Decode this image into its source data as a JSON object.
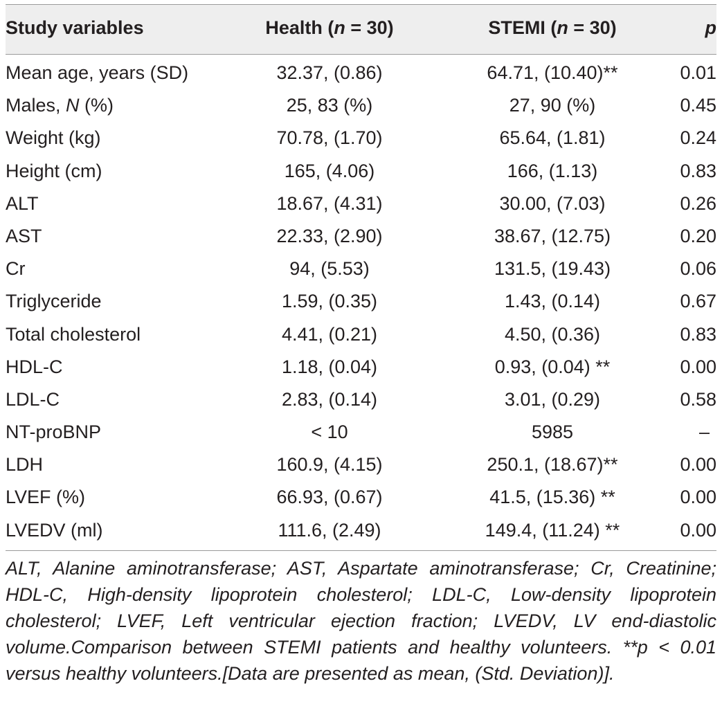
{
  "table": {
    "header": {
      "col1": "Study variables",
      "col2_prefix": "Health (",
      "col2_n": "n",
      "col2_suffix": " = 30)",
      "col3_prefix": "STEMI (",
      "col3_n": "n",
      "col3_suffix": " = 30)",
      "col4": "p"
    },
    "rows": [
      {
        "label": "Mean age, years (SD)",
        "health": "32.37, (0.86)",
        "stemi": "64.71, (10.40)**",
        "p": "0.01"
      },
      {
        "label_prefix": "Males, ",
        "label_italic": "N",
        "label_suffix": " (%)",
        "health": "25, 83 (%)",
        "stemi": "27, 90 (%)",
        "p": "0.45"
      },
      {
        "label": "Weight (kg)",
        "health": "70.78, (1.70)",
        "stemi": "65.64, (1.81)",
        "p": "0.24"
      },
      {
        "label": "Height (cm)",
        "health": "165, (4.06)",
        "stemi": "166, (1.13)",
        "p": "0.83"
      },
      {
        "label": "ALT",
        "health": "18.67, (4.31)",
        "stemi": "30.00, (7.03)",
        "p": "0.26"
      },
      {
        "label": "AST",
        "health": "22.33, (2.90)",
        "stemi": "38.67, (12.75)",
        "p": "0.20"
      },
      {
        "label": "Cr",
        "health": "94, (5.53)",
        "stemi": "131.5, (19.43)",
        "p": "0.06"
      },
      {
        "label": "Triglyceride",
        "health": "1.59, (0.35)",
        "stemi": "1.43, (0.14)",
        "p": "0.67"
      },
      {
        "label": "Total cholesterol",
        "health": "4.41, (0.21)",
        "stemi": "4.50, (0.36)",
        "p": "0.83"
      },
      {
        "label": "HDL-C",
        "health": "1.18, (0.04)",
        "stemi": "0.93, (0.04) **",
        "p": "0.00"
      },
      {
        "label": "LDL-C",
        "health": "2.83, (0.14)",
        "stemi": "3.01, (0.29)",
        "p": "0.58"
      },
      {
        "label": "NT-proBNP",
        "health": "< 10",
        "stemi": "5985",
        "p": "–"
      },
      {
        "label": "LDH",
        "health": "160.9, (4.15)",
        "stemi": "250.1, (18.67)**",
        "p": "0.00"
      },
      {
        "label": "LVEF (%)",
        "health": "66.93, (0.67)",
        "stemi": "41.5, (15.36) **",
        "p": "0.00"
      },
      {
        "label": "LVEDV (ml)",
        "health": "111.6, (2.49)",
        "stemi": "149.4, (11.24) **",
        "p": "0.00"
      }
    ],
    "footnote": "ALT, Alanine aminotransferase; AST, Aspartate aminotransferase; Cr, Creatinine; HDL-C, High-density lipoprotein cholesterol; LDL-C, Low-density lipoprotein cholesterol; LVEF, Left ventricular ejection fraction; LVEDV, LV end-diastolic volume.Comparison between STEMI patients and healthy volunteers. **p < 0.01 versus healthy volunteers.[Data are presented as mean, (Std. Deviation)]."
  }
}
